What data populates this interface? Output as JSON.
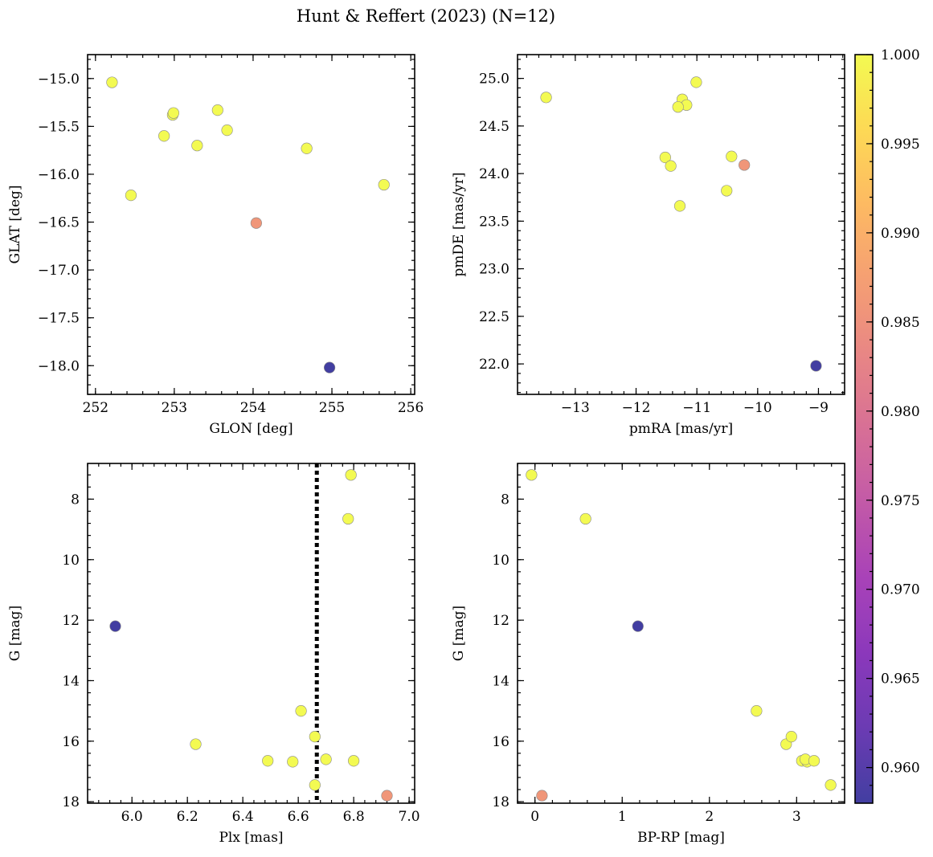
{
  "chart_data": {
    "title": "Hunt & Reffert (2023) (N=12)",
    "type": "scatter",
    "stars": [
      {
        "glon": 252.21,
        "glat": -15.04,
        "pmra": -13.48,
        "pmde": 24.8,
        "plx": 6.79,
        "g": 7.2,
        "bprp": -0.04,
        "p": 1.0
      },
      {
        "glon": 252.45,
        "glat": -16.22,
        "pmra": -11.01,
        "pmde": 24.96,
        "plx": 6.78,
        "g": 8.65,
        "bprp": 0.58,
        "p": 1.0
      },
      {
        "glon": 252.87,
        "glat": -15.6,
        "pmra": -11.24,
        "pmde": 24.78,
        "plx": 6.23,
        "g": 16.1,
        "bprp": 2.88,
        "p": 1.0
      },
      {
        "glon": 252.98,
        "glat": -15.38,
        "pmra": -11.17,
        "pmde": 24.72,
        "plx": 6.61,
        "g": 15.0,
        "bprp": 2.54,
        "p": 1.0
      },
      {
        "glon": 252.99,
        "glat": -15.36,
        "pmra": -11.31,
        "pmde": 24.7,
        "plx": 6.66,
        "g": 15.85,
        "bprp": 2.94,
        "p": 1.0
      },
      {
        "glon": 253.29,
        "glat": -15.7,
        "pmra": -11.52,
        "pmde": 24.17,
        "plx": 6.49,
        "g": 16.65,
        "bprp": 3.06,
        "p": 1.0
      },
      {
        "glon": 253.55,
        "glat": -15.33,
        "pmra": -11.43,
        "pmde": 24.08,
        "plx": 6.58,
        "g": 16.68,
        "bprp": 3.12,
        "p": 1.0
      },
      {
        "glon": 253.67,
        "glat": -15.54,
        "pmra": -10.43,
        "pmde": 24.18,
        "plx": 6.7,
        "g": 16.6,
        "bprp": 3.1,
        "p": 1.0
      },
      {
        "glon": 254.68,
        "glat": -15.73,
        "pmra": -10.51,
        "pmde": 23.82,
        "plx": 6.8,
        "g": 16.65,
        "bprp": 3.2,
        "p": 1.0
      },
      {
        "glon": 255.66,
        "glat": -16.11,
        "pmra": -11.28,
        "pmde": 23.66,
        "plx": 6.66,
        "g": 17.45,
        "bprp": 3.39,
        "p": 1.0
      },
      {
        "glon": 254.04,
        "glat": -16.51,
        "pmra": -10.22,
        "pmde": 24.09,
        "plx": 6.92,
        "g": 17.8,
        "bprp": 0.08,
        "p": 0.986
      },
      {
        "glon": 254.97,
        "glat": -18.02,
        "pmra": -9.04,
        "pmde": 21.98,
        "plx": 5.94,
        "g": 12.2,
        "bprp": 1.18,
        "p": 0.958
      }
    ],
    "panels": [
      {
        "id": "glon-glat",
        "xkey": "glon",
        "ykey": "glat",
        "xlabel": "GLON [deg]",
        "ylabel": "GLAT [deg]",
        "xlim": [
          251.9,
          256.05
        ],
        "ylim": [
          -18.3,
          -14.75
        ],
        "invert_y": false,
        "xticks": [
          252,
          253,
          254,
          255,
          256
        ],
        "xtick_labels": [
          "252",
          "253",
          "254",
          "255",
          "256"
        ],
        "yticks": [
          -15.0,
          -15.5,
          -16.0,
          -16.5,
          -17.0,
          -17.5,
          -18.0
        ],
        "ytick_labels": [
          "−15.0",
          "−15.5",
          "−16.0",
          "−16.5",
          "−17.0",
          "−17.5",
          "−18.0"
        ],
        "vline": null
      },
      {
        "id": "pm",
        "xkey": "pmra",
        "ykey": "pmde",
        "xlabel": "pmRA [mas/yr]",
        "ylabel": "pmDE [mas/yr]",
        "xlim": [
          -13.95,
          -8.57
        ],
        "ylim": [
          21.68,
          25.25
        ],
        "invert_y": false,
        "xticks": [
          -13,
          -12,
          -11,
          -10,
          -9
        ],
        "xtick_labels": [
          "−13",
          "−12",
          "−11",
          "−10",
          "−9"
        ],
        "yticks": [
          25.0,
          24.5,
          24.0,
          23.5,
          23.0,
          22.5,
          22.0
        ],
        "ytick_labels": [
          "25.0",
          "24.5",
          "24.0",
          "23.5",
          "23.0",
          "22.5",
          "22.0"
        ],
        "vline": null
      },
      {
        "id": "plx-g",
        "xkey": "plx",
        "ykey": "g",
        "xlabel": "Plx [mas]",
        "ylabel": "G [mag]",
        "xlim": [
          5.84,
          7.02
        ],
        "ylim": [
          6.82,
          18.05
        ],
        "invert_y": true,
        "xticks": [
          6.0,
          6.2,
          6.4,
          6.6,
          6.8,
          7.0
        ],
        "xtick_labels": [
          "6.0",
          "6.2",
          "6.4",
          "6.6",
          "6.8",
          "7.0"
        ],
        "yticks": [
          8,
          10,
          12,
          14,
          16,
          18
        ],
        "ytick_labels": [
          "8",
          "10",
          "12",
          "14",
          "16",
          "18"
        ],
        "vline": 6.667
      },
      {
        "id": "bprp-g",
        "xkey": "bprp",
        "ykey": "g",
        "xlabel": "BP-RP [mag]",
        "ylabel": "G [mag]",
        "xlim": [
          -0.2,
          3.55
        ],
        "ylim": [
          6.82,
          18.05
        ],
        "invert_y": true,
        "xticks": [
          0,
          1,
          2,
          3
        ],
        "xtick_labels": [
          "0",
          "1",
          "2",
          "3"
        ],
        "yticks": [
          8,
          10,
          12,
          14,
          16,
          18
        ],
        "ytick_labels": [
          "8",
          "10",
          "12",
          "14",
          "16",
          "18"
        ],
        "vline": null
      }
    ],
    "colorbar": {
      "vmin": 0.958,
      "vmax": 1.0,
      "cmap": "plasma",
      "ticks": [
        1.0,
        0.995,
        0.99,
        0.985,
        0.98,
        0.975,
        0.97,
        0.965,
        0.96
      ],
      "tick_labels": [
        "1.000",
        "0.995",
        "0.990",
        "0.985",
        "0.980",
        "0.975",
        "0.970",
        "0.965",
        "0.960"
      ]
    }
  }
}
